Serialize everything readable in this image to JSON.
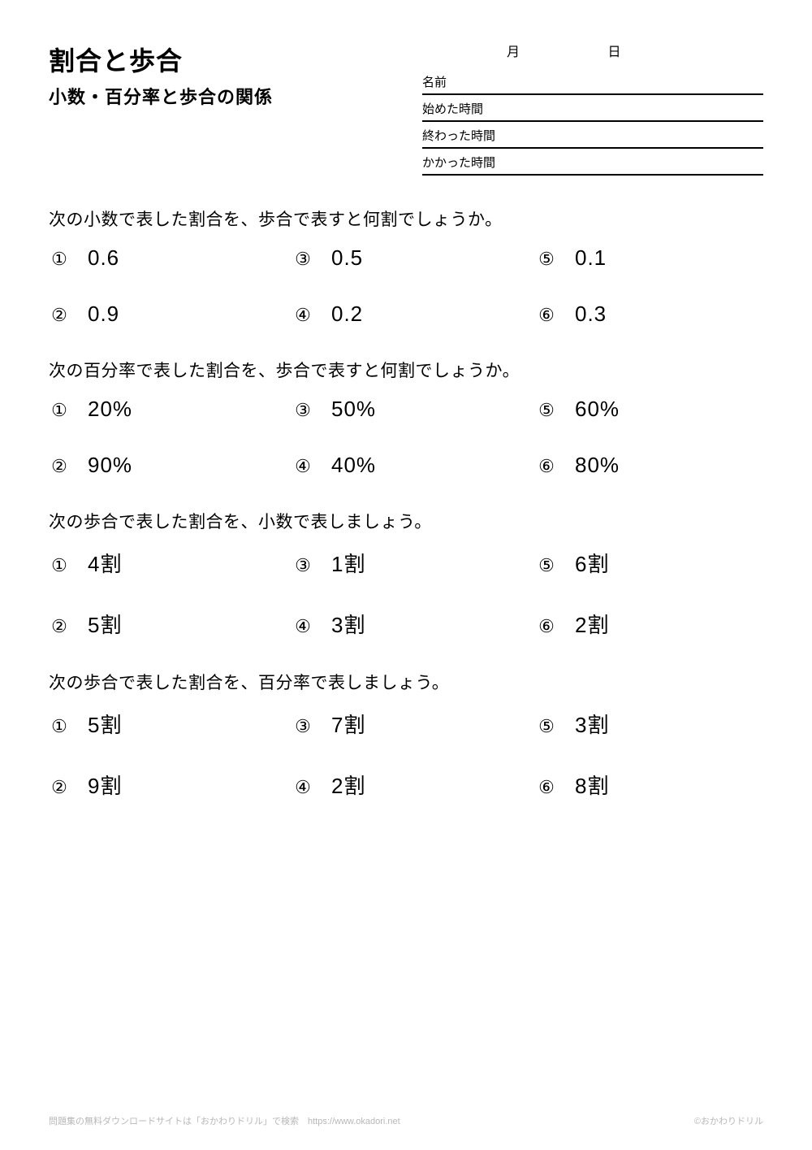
{
  "header": {
    "title": "割合と歩合",
    "subtitle": "小数・百分率と歩合の関係",
    "month_label": "月",
    "day_label": "日",
    "meta_labels": [
      "名前",
      "始めた時間",
      "終わった時間",
      "かかった時間"
    ]
  },
  "sections": [
    {
      "instruction": "次の小数で表した割合を、歩合で表すと何割でしょうか。",
      "rows": [
        [
          {
            "n": "①",
            "v": "0.6"
          },
          {
            "n": "③",
            "v": "0.5"
          },
          {
            "n": "⑤",
            "v": "0.1"
          }
        ],
        [
          {
            "n": "②",
            "v": "0.9"
          },
          {
            "n": "④",
            "v": "0.2"
          },
          {
            "n": "⑥",
            "v": "0.3"
          }
        ]
      ]
    },
    {
      "instruction": "次の百分率で表した割合を、歩合で表すと何割でしょうか。",
      "rows": [
        [
          {
            "n": "①",
            "v": "20%"
          },
          {
            "n": "③",
            "v": "50%"
          },
          {
            "n": "⑤",
            "v": "60%"
          }
        ],
        [
          {
            "n": "②",
            "v": "90%"
          },
          {
            "n": "④",
            "v": "40%"
          },
          {
            "n": "⑥",
            "v": "80%"
          }
        ]
      ]
    },
    {
      "instruction": "次の歩合で表した割合を、小数で表しましょう。",
      "rows": [
        [
          {
            "n": "①",
            "v": "4割"
          },
          {
            "n": "③",
            "v": "1割"
          },
          {
            "n": "⑤",
            "v": "6割"
          }
        ],
        [
          {
            "n": "②",
            "v": "5割"
          },
          {
            "n": "④",
            "v": "3割"
          },
          {
            "n": "⑥",
            "v": "2割"
          }
        ]
      ]
    },
    {
      "instruction": "次の歩合で表した割合を、百分率で表しましょう。",
      "rows": [
        [
          {
            "n": "①",
            "v": "5割"
          },
          {
            "n": "③",
            "v": "7割"
          },
          {
            "n": "⑤",
            "v": "3割"
          }
        ],
        [
          {
            "n": "②",
            "v": "9割"
          },
          {
            "n": "④",
            "v": "2割"
          },
          {
            "n": "⑥",
            "v": "8割"
          }
        ]
      ]
    }
  ],
  "footer": {
    "left": "問題集の無料ダウンロードサイトは「おかわりドリル」で検索　https://www.okadori.net",
    "right": "©おかわりドリル"
  }
}
